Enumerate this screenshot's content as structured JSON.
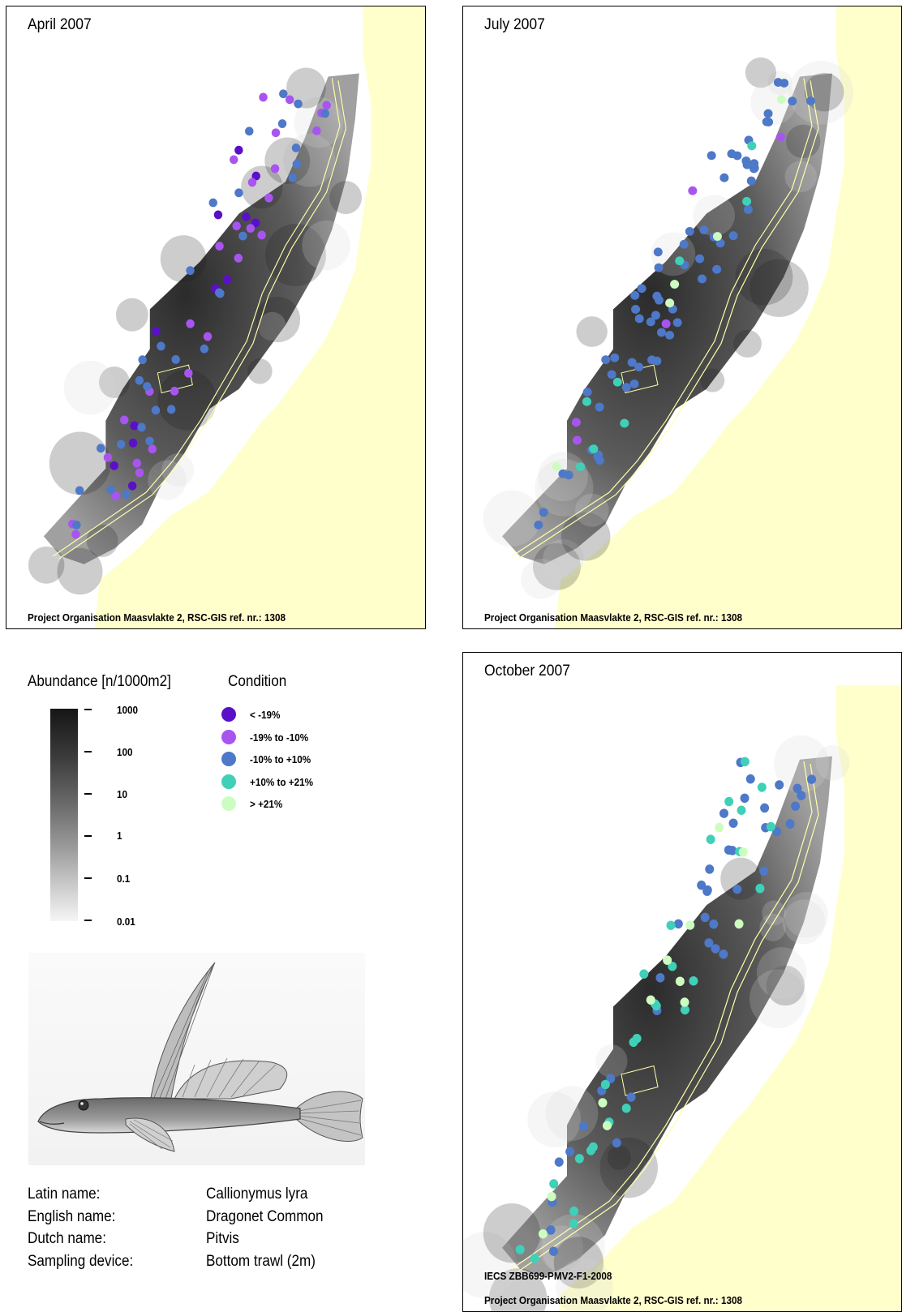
{
  "colors": {
    "land": "#ffffcc",
    "lt_m19": "#5a10c8",
    "m19_m10": "#a855f0",
    "m10_p10": "#4e78c8",
    "p10_p21": "#40d0b8",
    "gt_p21": "#cdfcc0",
    "route": "#ffffaa"
  },
  "maps": [
    {
      "title": "April 2007",
      "credit": "Project Organisation Maasvlakte 2, RSC-GIS ref. nr.: 1308",
      "class_counts": {
        "lt_m19": 12,
        "m19_m10": 28,
        "m10_p10": 30,
        "p10_p21": 0,
        "gt_p21": 0
      }
    },
    {
      "title": "July 2007",
      "credit": "Project Organisation Maasvlakte 2, RSC-GIS ref. nr.: 1308",
      "class_counts": {
        "lt_m19": 0,
        "m19_m10": 5,
        "m10_p10": 62,
        "p10_p21": 8,
        "gt_p21": 5
      }
    },
    {
      "title": "October 2007",
      "credit": "Project Organisation Maasvlakte 2, RSC-GIS ref. nr.: 1308",
      "ref_code": "IECS ZBB699-PMV2-F1-2008",
      "class_counts": {
        "lt_m19": 0,
        "m19_m10": 0,
        "m10_p10": 40,
        "p10_p21": 28,
        "gt_p21": 12
      }
    }
  ],
  "legend": {
    "abundance_title": "Abundance [n/1000m2]",
    "scale_ticks": [
      "1000",
      "100",
      "10",
      "1",
      "0.1",
      "0.01"
    ],
    "condition_title": "Condition",
    "condition_classes": [
      {
        "key": "lt_m19",
        "label": "< -19%"
      },
      {
        "key": "m19_m10",
        "label": "-19% to -10%"
      },
      {
        "key": "m10_p10",
        "label": "-10% to +10%"
      },
      {
        "key": "p10_p21",
        "label": "+10% to +21%"
      },
      {
        "key": "gt_p21",
        "label": "> +21%"
      }
    ]
  },
  "species": {
    "image": "fish-illustration",
    "rows": [
      {
        "key": "Latin name:",
        "value": "Callionymus lyra"
      },
      {
        "key": "English name:",
        "value": "Dragonet Common"
      },
      {
        "key": "Dutch name:",
        "value": "Pitvis"
      },
      {
        "key": "Sampling device:",
        "value": "Bottom trawl (2m)"
      }
    ]
  }
}
